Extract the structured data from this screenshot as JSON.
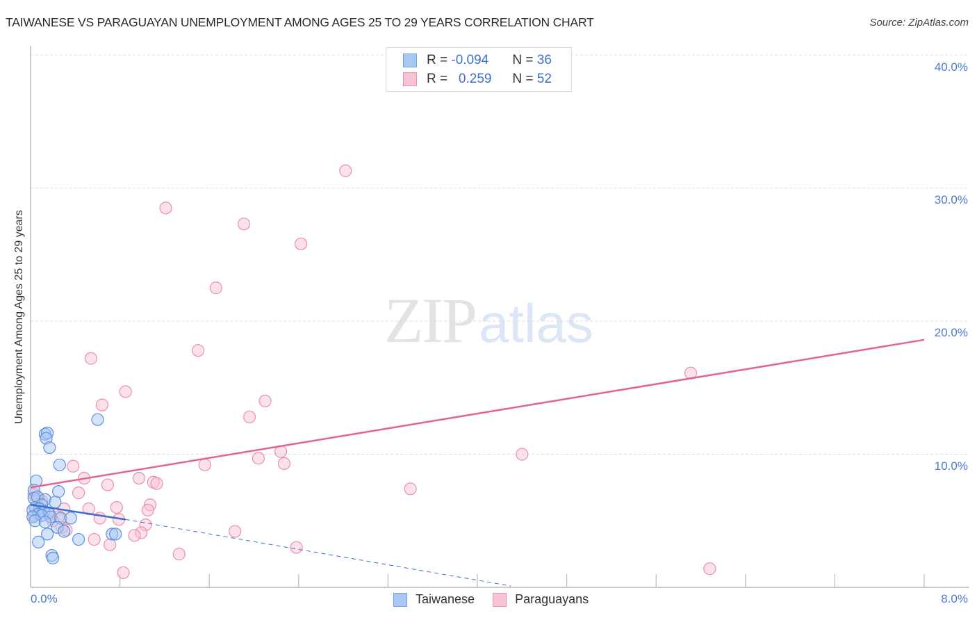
{
  "header": {
    "title": "TAIWANESE VS PARAGUAYAN UNEMPLOYMENT AMONG AGES 25 TO 29 YEARS CORRELATION CHART",
    "source": "Source: ZipAtlas.com"
  },
  "watermark": {
    "zip": "ZIP",
    "atlas": "atlas"
  },
  "legend": {
    "rows": [
      {
        "r_label": "R = ",
        "r_value": "-0.094",
        "n_label": "N = ",
        "n_value": "36",
        "color": "#a9c8f3",
        "border": "#6f9fe0"
      },
      {
        "r_label": "R = ",
        "r_value": "  0.259",
        "n_label": "N = ",
        "n_value": "52",
        "color": "#f8c3d3",
        "border": "#ec8fab"
      }
    ]
  },
  "bottom_legend": {
    "items": [
      {
        "label": "Taiwanese",
        "color": "#a9c8f3",
        "border": "#6f9fe0"
      },
      {
        "label": "Paraguayans",
        "color": "#f8c3d3",
        "border": "#ec8fab"
      }
    ]
  },
  "axes": {
    "ylabel": "Unemployment Among Ages 25 to 29 years",
    "y_ticks": [
      "40.0%",
      "30.0%",
      "20.0%",
      "10.0%"
    ],
    "x_ticks": [
      "0.0%",
      "8.0%"
    ]
  },
  "colors": {
    "taiwanese_fill": "#a9c8f3",
    "taiwanese_stroke": "#5b8fde",
    "taiwanese_line": "#3a6fd0",
    "paraguayan_fill": "#f8c3d3",
    "paraguayan_stroke": "#ec8fab",
    "paraguayan_line": "#e5648f",
    "tick_label": "#4a7bd0",
    "grid": "#dddddd"
  },
  "chart_data": {
    "type": "scatter",
    "title": "TAIWANESE VS PARAGUAYAN UNEMPLOYMENT AMONG AGES 25 TO 29 YEARS CORRELATION CHART",
    "xlabel": "",
    "ylabel": "Unemployment Among Ages 25 to 29 years",
    "xlim": [
      0,
      8
    ],
    "ylim": [
      0,
      40
    ],
    "x_unit": "%",
    "y_unit": "%",
    "grid": {
      "y": true,
      "x": false
    },
    "legend_position": "top-center",
    "series": [
      {
        "name": "Taiwanese",
        "R": -0.094,
        "N": 36,
        "trendline": {
          "x": [
            0.0,
            0.85
          ],
          "y": [
            6.2,
            5.1
          ],
          "dashed_extension": {
            "x": [
              0.85,
              4.3
            ],
            "y": [
              5.1,
              0.1
            ]
          }
        },
        "points": [
          [
            0.13,
            11.5
          ],
          [
            0.15,
            11.6
          ],
          [
            0.14,
            11.2
          ],
          [
            0.17,
            10.5
          ],
          [
            0.6,
            12.6
          ],
          [
            0.26,
            9.2
          ],
          [
            0.05,
            8.0
          ],
          [
            0.25,
            7.2
          ],
          [
            0.03,
            7.3
          ],
          [
            0.03,
            6.7
          ],
          [
            0.06,
            6.8
          ],
          [
            0.13,
            6.6
          ],
          [
            0.22,
            6.4
          ],
          [
            0.1,
            6.2
          ],
          [
            0.04,
            6.0
          ],
          [
            0.08,
            5.9
          ],
          [
            0.02,
            5.8
          ],
          [
            0.12,
            5.7
          ],
          [
            0.16,
            5.6
          ],
          [
            0.07,
            5.5
          ],
          [
            0.02,
            5.3
          ],
          [
            0.1,
            5.4
          ],
          [
            0.18,
            5.3
          ],
          [
            0.27,
            5.2
          ],
          [
            0.36,
            5.2
          ],
          [
            0.04,
            5.0
          ],
          [
            0.13,
            4.9
          ],
          [
            0.24,
            4.5
          ],
          [
            0.3,
            4.2
          ],
          [
            0.15,
            4.0
          ],
          [
            0.73,
            4.0
          ],
          [
            0.76,
            4.0
          ],
          [
            0.43,
            3.6
          ],
          [
            0.07,
            3.4
          ],
          [
            0.19,
            2.4
          ],
          [
            0.2,
            2.2
          ]
        ]
      },
      {
        "name": "Paraguayans",
        "R": 0.259,
        "N": 52,
        "trendline": {
          "x": [
            0.0,
            8.0
          ],
          "y": [
            7.5,
            18.6
          ]
        },
        "points": [
          [
            2.82,
            31.3
          ],
          [
            1.21,
            28.5
          ],
          [
            1.91,
            27.3
          ],
          [
            2.42,
            25.8
          ],
          [
            1.66,
            22.5
          ],
          [
            1.5,
            17.8
          ],
          [
            0.54,
            17.2
          ],
          [
            5.91,
            16.1
          ],
          [
            0.85,
            14.7
          ],
          [
            2.1,
            14.0
          ],
          [
            0.64,
            13.7
          ],
          [
            1.96,
            12.8
          ],
          [
            2.24,
            10.2
          ],
          [
            4.4,
            10.0
          ],
          [
            2.04,
            9.7
          ],
          [
            2.27,
            9.3
          ],
          [
            1.56,
            9.2
          ],
          [
            0.38,
            9.1
          ],
          [
            0.48,
            8.2
          ],
          [
            0.97,
            8.2
          ],
          [
            1.1,
            7.9
          ],
          [
            1.13,
            7.8
          ],
          [
            0.69,
            7.7
          ],
          [
            3.4,
            7.4
          ],
          [
            0.43,
            7.1
          ],
          [
            0.03,
            7.0
          ],
          [
            0.07,
            6.7
          ],
          [
            0.1,
            6.5
          ],
          [
            1.07,
            6.2
          ],
          [
            0.77,
            6.0
          ],
          [
            0.52,
            5.9
          ],
          [
            0.3,
            5.9
          ],
          [
            1.05,
            5.8
          ],
          [
            0.17,
            5.5
          ],
          [
            0.03,
            5.4
          ],
          [
            0.25,
            5.3
          ],
          [
            0.62,
            5.2
          ],
          [
            0.79,
            5.1
          ],
          [
            0.2,
            5.0
          ],
          [
            1.03,
            4.7
          ],
          [
            0.28,
            4.5
          ],
          [
            0.32,
            4.3
          ],
          [
            1.83,
            4.2
          ],
          [
            0.99,
            4.1
          ],
          [
            0.93,
            3.9
          ],
          [
            0.57,
            3.6
          ],
          [
            0.71,
            3.2
          ],
          [
            2.38,
            3.0
          ],
          [
            1.33,
            2.5
          ],
          [
            6.08,
            1.4
          ],
          [
            0.83,
            1.1
          ],
          [
            0.09,
            6.3
          ]
        ]
      }
    ]
  }
}
